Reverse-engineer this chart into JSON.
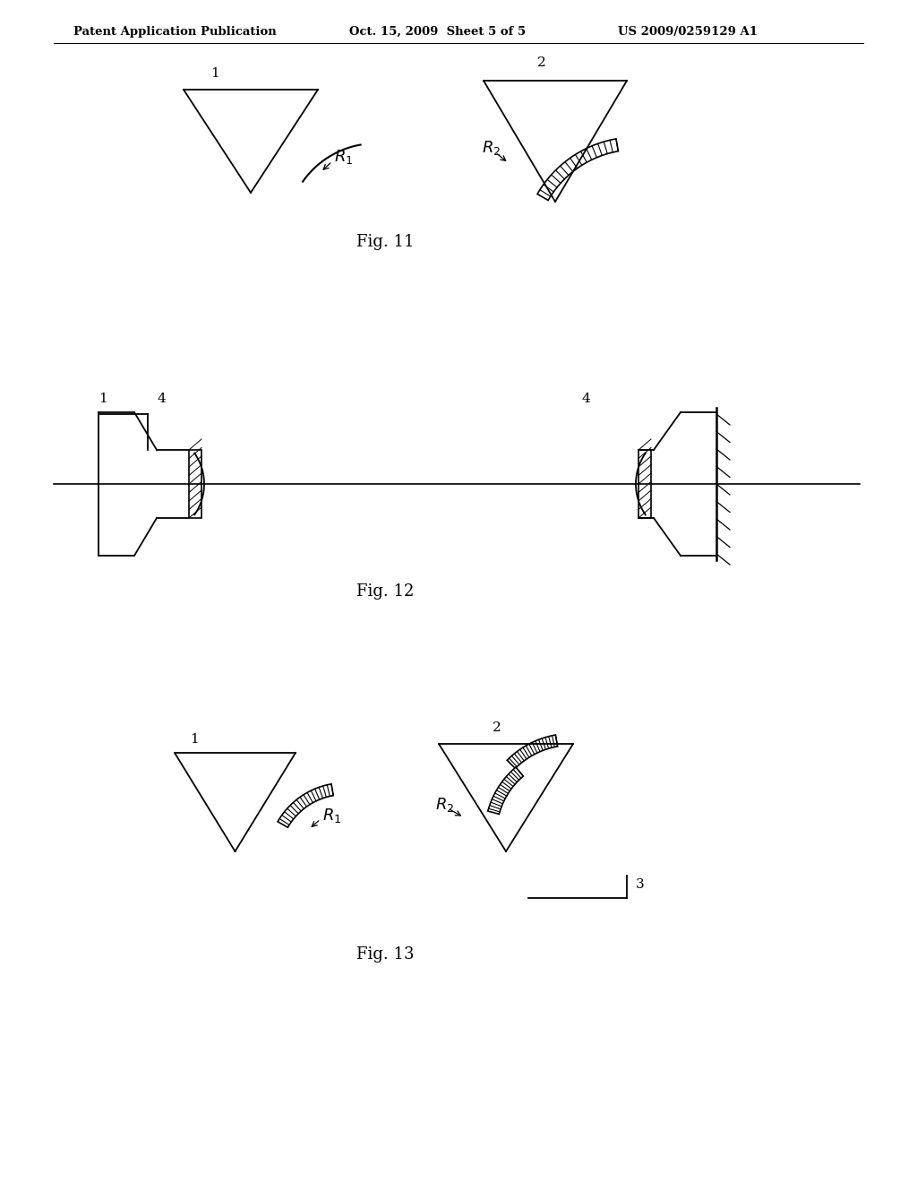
{
  "background_color": "#ffffff",
  "header_left": "Patent Application Publication",
  "header_mid": "Oct. 15, 2009  Sheet 5 of 5",
  "header_right": "US 2009/0259129 A1",
  "fig11_caption": "Fig. 11",
  "fig12_caption": "Fig. 12",
  "fig13_caption": "Fig. 13",
  "line_color": "#000000",
  "text_color": "#000000"
}
